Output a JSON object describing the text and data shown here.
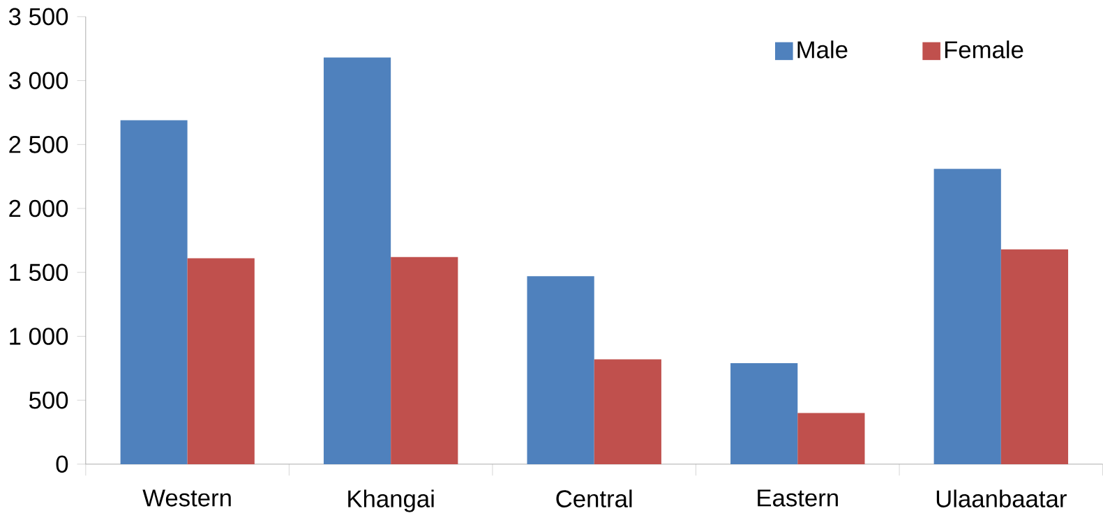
{
  "chart_data": {
    "type": "bar",
    "categories": [
      "Western",
      "Khangai",
      "Central",
      "Eastern",
      "Ulaanbaatar"
    ],
    "series": [
      {
        "name": "Male",
        "color": "#4f81bd",
        "values": [
          2690,
          3180,
          1470,
          790,
          2310
        ]
      },
      {
        "name": "Female",
        "color": "#c0504d",
        "values": [
          1610,
          1620,
          820,
          400,
          1680
        ]
      }
    ],
    "ylim": [
      0,
      3500
    ],
    "yticks": [
      0,
      500,
      {
        "value": 1000,
        "label": "1 000"
      },
      {
        "value": 1500,
        "label": "1 500"
      },
      {
        "value": 2000,
        "label": "2 000"
      },
      {
        "value": 2500,
        "label": "2 500"
      },
      {
        "value": 3000,
        "label": "3 000"
      },
      {
        "value": 3500,
        "label": "3 500"
      }
    ],
    "grid": false,
    "legend": "top right"
  }
}
